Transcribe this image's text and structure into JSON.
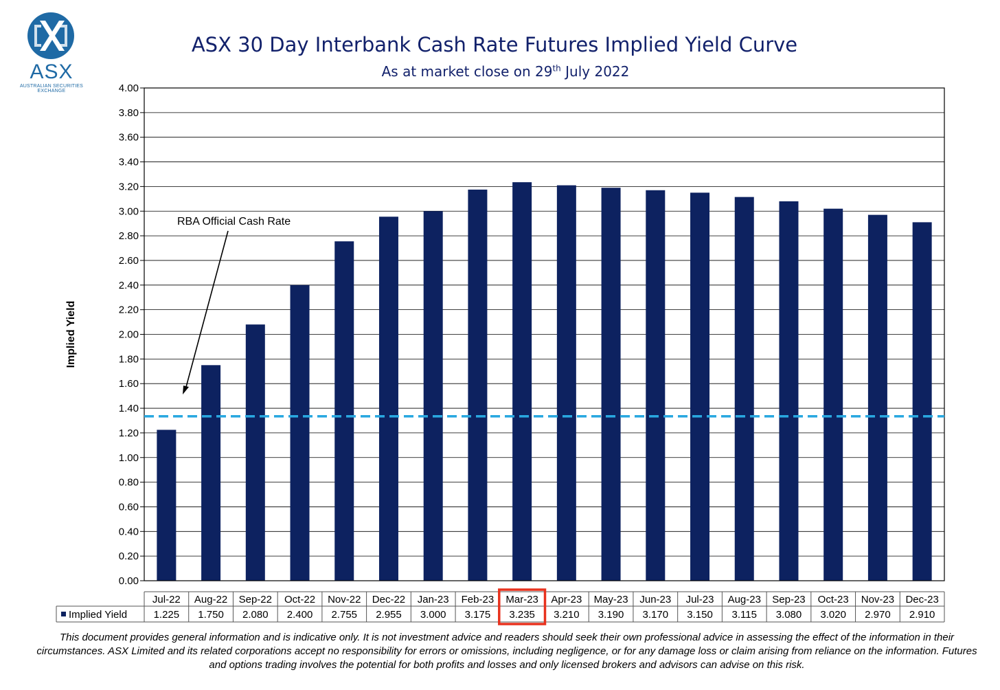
{
  "logo": {
    "wordmark": "ASX",
    "subtitle": "AUSTRALIAN SECURITIES EXCHANGE"
  },
  "header": {
    "title": "ASX 30 Day Interbank Cash Rate Futures Implied Yield Curve",
    "subtitle_prefix": "As at market close on 29",
    "subtitle_sup": "th",
    "subtitle_suffix": " July 2022"
  },
  "chart_data": {
    "type": "bar",
    "title": "ASX 30 Day Interbank Cash Rate Futures Implied Yield Curve",
    "ylabel": "Implied Yield",
    "xlabel": "",
    "ylim": [
      0,
      4.0
    ],
    "ytick_step": 0.2,
    "yticks": [
      "0.00",
      "0.20",
      "0.40",
      "0.60",
      "0.80",
      "1.00",
      "1.20",
      "1.40",
      "1.60",
      "1.80",
      "2.00",
      "2.20",
      "2.40",
      "2.60",
      "2.80",
      "3.00",
      "3.20",
      "3.40",
      "3.60",
      "3.80",
      "4.00"
    ],
    "grid": true,
    "categories": [
      "Jul-22",
      "Aug-22",
      "Sep-22",
      "Oct-22",
      "Nov-22",
      "Dec-22",
      "Jan-23",
      "Feb-23",
      "Mar-23",
      "Apr-23",
      "May-23",
      "Jun-23",
      "Jul-23",
      "Aug-23",
      "Sep-23",
      "Oct-23",
      "Nov-23",
      "Dec-23"
    ],
    "series": [
      {
        "name": "Implied Yield",
        "color": "#0d2260",
        "values": [
          1.225,
          1.75,
          2.08,
          2.4,
          2.755,
          2.955,
          3.0,
          3.175,
          3.235,
          3.21,
          3.19,
          3.17,
          3.15,
          3.115,
          3.08,
          3.02,
          2.97,
          2.91
        ]
      }
    ],
    "table_values": [
      "1.225",
      "1.750",
      "2.080",
      "2.400",
      "2.755",
      "2.955",
      "3.000",
      "3.175",
      "3.235",
      "3.210",
      "3.190",
      "3.170",
      "3.150",
      "3.115",
      "3.080",
      "3.020",
      "2.970",
      "2.910"
    ],
    "reference_line": {
      "label": "RBA Official Cash Rate",
      "value": 1.335,
      "color": "#29a8e0"
    },
    "highlight": {
      "category": "Mar-23",
      "color": "#e8321e"
    },
    "legend": "data table"
  },
  "footer": {
    "disclaimer": "This document provides general information and is indicative only. It is not investment advice and readers should seek their own professional advice in assessing the effect of the information in their circumstances. ASX Limited and its related corporations accept no responsibility for errors or omissions, including negligence, or for any damage loss or claim arising from reliance on the information. Futures and options trading involves the potential for both profits and losses and only licensed brokers and advisors can advise on this risk."
  }
}
